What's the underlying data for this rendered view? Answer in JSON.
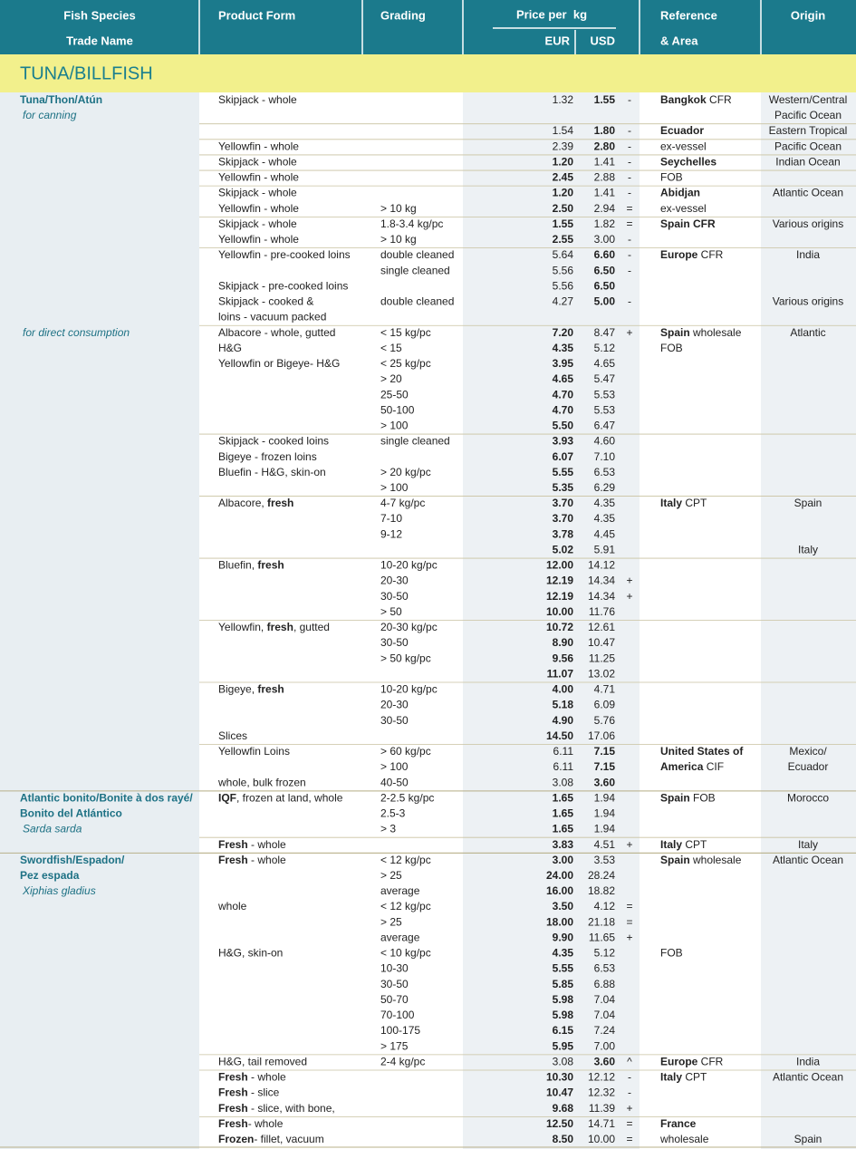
{
  "header": {
    "fish_species": "Fish Species",
    "trade_name": "Trade Name",
    "product_form": "Product Form",
    "grading": "Grading",
    "price_per_kg": "Price per  kg",
    "eur": "EUR",
    "usd": "USD",
    "reference": "Reference",
    "area": "& Area",
    "origin": "Origin"
  },
  "section": "TUNA/BILLFISH",
  "rows": [
    {
      "s": {
        "text": "Tuna/Thon/Atún",
        "bold": true
      },
      "f": "Skipjack - whole",
      "e": "1.32",
      "u": {
        "text": "1.55",
        "bold": true
      },
      "c": "-",
      "r": [
        {
          "text": "Bangkok",
          "bold": true
        },
        " CFR"
      ],
      "o": "Western/Central"
    },
    {
      "s": {
        "text": "for canning",
        "italic": true
      },
      "o": "Pacific Ocean"
    },
    {
      "e": "1.54",
      "u": {
        "text": "1.80",
        "bold": true
      },
      "c": "-",
      "r": {
        "text": "Ecuador",
        "bold": true
      },
      "o": "Eastern Tropical"
    },
    {
      "f": "Yellowfin - whole",
      "e": "2.39",
      "u": {
        "text": "2.80",
        "bold": true
      },
      "c": "-",
      "r": "ex-vessel",
      "o": "Pacific Ocean"
    },
    {
      "f": "Skipjack - whole",
      "e": {
        "text": "1.20",
        "bold": true
      },
      "u": "1.41",
      "c": "-",
      "r": {
        "text": "Seychelles",
        "bold": true
      },
      "o": "Indian Ocean"
    },
    {
      "f": "Yellowfin - whole",
      "e": {
        "text": "2.45",
        "bold": true
      },
      "u": "2.88",
      "c": "-",
      "r": "FOB"
    },
    {
      "f": "Skipjack - whole",
      "e": {
        "text": "1.20",
        "bold": true
      },
      "u": "1.41",
      "c": "-",
      "r": {
        "text": "Abidjan",
        "bold": true
      },
      "o": "Atlantic Ocean"
    },
    {
      "f": "Yellowfin - whole",
      "g": "> 10 kg",
      "e": {
        "text": "2.50",
        "bold": true
      },
      "u": "2.94",
      "c": "=",
      "r": "ex-vessel"
    },
    {
      "f": "Skipjack - whole",
      "g": "1.8-3.4 kg/pc",
      "e": {
        "text": "1.55",
        "bold": true
      },
      "u": "1.82",
      "c": "=",
      "r": {
        "text": "Spain CFR",
        "bold": true
      },
      "o": "Various origins"
    },
    {
      "f": "Yellowfin - whole",
      "g": "> 10 kg",
      "e": {
        "text": "2.55",
        "bold": true
      },
      "u": "3.00",
      "c": "-"
    },
    {
      "f": "Yellowfin - pre-cooked loins",
      "g": "double cleaned",
      "e": "5.64",
      "u": {
        "text": "6.60",
        "bold": true
      },
      "c": "-",
      "r": [
        {
          "text": "Europe",
          "bold": true
        },
        " CFR"
      ],
      "o": "India"
    },
    {
      "g": "single cleaned",
      "e": "5.56",
      "u": {
        "text": "6.50",
        "bold": true
      },
      "c": "-"
    },
    {
      "f": "Skipjack - pre-cooked loins",
      "e": "5.56",
      "u": {
        "text": "6.50",
        "bold": true
      }
    },
    {
      "f": "Skipjack - cooked &",
      "g": "double cleaned",
      "e": "4.27",
      "u": {
        "text": "5.00",
        "bold": true
      },
      "c": "-",
      "o": "Various origins"
    },
    {
      "f": "loins - vacuum packed"
    },
    {
      "s": {
        "text": "for direct consumption",
        "italic": true
      },
      "f": "Albacore - whole, gutted",
      "g": "< 15 kg/pc",
      "e": {
        "text": "7.20",
        "bold": true
      },
      "u": "8.47",
      "c": "+",
      "r": [
        {
          "text": "Spain",
          "bold": true
        },
        " wholesale"
      ],
      "o": "Atlantic"
    },
    {
      "f": "H&G",
      "g": "< 15",
      "e": {
        "text": "4.35",
        "bold": true
      },
      "u": "5.12",
      "r": "FOB"
    },
    {
      "f": "Yellowfin or Bigeye- H&G",
      "g": "< 25 kg/pc",
      "e": {
        "text": "3.95",
        "bold": true
      },
      "u": "4.65"
    },
    {
      "g": "> 20",
      "e": {
        "text": "4.65",
        "bold": true
      },
      "u": "5.47"
    },
    {
      "g": "25-50",
      "e": {
        "text": "4.70",
        "bold": true
      },
      "u": "5.53"
    },
    {
      "g": "50-100",
      "e": {
        "text": "4.70",
        "bold": true
      },
      "u": "5.53"
    },
    {
      "g": "> 100",
      "e": {
        "text": "5.50",
        "bold": true
      },
      "u": "6.47"
    },
    {
      "f": "Skipjack - cooked loins",
      "g": "single cleaned",
      "e": {
        "text": "3.93",
        "bold": true
      },
      "u": "4.60"
    },
    {
      "f": "Bigeye - frozen loins",
      "e": {
        "text": "6.07",
        "bold": true
      },
      "u": "7.10"
    },
    {
      "f": "Bluefin - H&G, skin-on",
      "g": "> 20 kg/pc",
      "e": {
        "text": "5.55",
        "bold": true
      },
      "u": "6.53"
    },
    {
      "g": "> 100",
      "e": {
        "text": "5.35",
        "bold": true
      },
      "u": "6.29"
    },
    {
      "f": [
        "Albacore, ",
        {
          "text": "fresh",
          "bold": true
        }
      ],
      "g": "4-7 kg/pc",
      "e": {
        "text": "3.70",
        "bold": true
      },
      "u": "4.35",
      "r": [
        {
          "text": "Italy",
          "bold": true
        },
        " CPT"
      ],
      "o": "Spain"
    },
    {
      "g": "7-10",
      "e": {
        "text": "3.70",
        "bold": true
      },
      "u": "4.35"
    },
    {
      "g": "9-12",
      "e": {
        "text": "3.78",
        "bold": true
      },
      "u": "4.45"
    },
    {
      "e": {
        "text": "5.02",
        "bold": true
      },
      "u": "5.91",
      "o": "Italy"
    },
    {
      "f": [
        "Bluefin, ",
        {
          "text": "fresh",
          "bold": true
        }
      ],
      "g": "10-20 kg/pc",
      "e": {
        "text": "12.00",
        "bold": true
      },
      "u": "14.12"
    },
    {
      "g": "20-30",
      "e": {
        "text": "12.19",
        "bold": true
      },
      "u": "14.34",
      "c": "+"
    },
    {
      "g": "30-50",
      "e": {
        "text": "12.19",
        "bold": true
      },
      "u": "14.34",
      "c": "+"
    },
    {
      "g": "> 50",
      "e": {
        "text": "10.00",
        "bold": true
      },
      "u": "11.76"
    },
    {
      "f": [
        "Yellowfin, ",
        {
          "text": "fresh",
          "bold": true
        },
        ", gutted"
      ],
      "g": "20-30 kg/pc",
      "e": {
        "text": "10.72",
        "bold": true
      },
      "u": "12.61"
    },
    {
      "g": "30-50",
      "e": {
        "text": "8.90",
        "bold": true
      },
      "u": "10.47"
    },
    {
      "g": "> 50 kg/pc",
      "e": {
        "text": "9.56",
        "bold": true
      },
      "u": "11.25"
    },
    {
      "e": {
        "text": "11.07",
        "bold": true
      },
      "u": "13.02"
    },
    {
      "f": [
        "Bigeye, ",
        {
          "text": "fresh",
          "bold": true
        }
      ],
      "g": "10-20 kg/pc",
      "e": {
        "text": "4.00",
        "bold": true
      },
      "u": "4.71"
    },
    {
      "g": "20-30",
      "e": {
        "text": "5.18",
        "bold": true
      },
      "u": "6.09"
    },
    {
      "g": "30-50",
      "e": {
        "text": "4.90",
        "bold": true
      },
      "u": "5.76"
    },
    {
      "f": "Slices",
      "e": {
        "text": "14.50",
        "bold": true
      },
      "u": "17.06"
    },
    {
      "f": "Yellowfin Loins",
      "g": "> 60 kg/pc",
      "e": "6.11",
      "u": {
        "text": "7.15",
        "bold": true
      },
      "r": {
        "text": "United States of",
        "bold": true
      },
      "o": "Mexico/"
    },
    {
      "g": "> 100",
      "e": "6.11",
      "u": {
        "text": "7.15",
        "bold": true
      },
      "r": [
        {
          "text": "America",
          "bold": true
        },
        " CIF"
      ],
      "o": "Ecuador"
    },
    {
      "f": "whole, bulk frozen",
      "g": "40-50",
      "e": "3.08",
      "u": {
        "text": "3.60",
        "bold": true
      }
    },
    {
      "s": {
        "text": "Atlantic bonito/Bonite à dos rayé/",
        "bold": true
      },
      "f": [
        {
          "text": "IQF",
          "bold": true
        },
        ", frozen at land, whole"
      ],
      "g": "2-2.5 kg/pc",
      "e": {
        "text": "1.65",
        "bold": true
      },
      "u": "1.94",
      "r": [
        {
          "text": "Spain",
          "bold": true
        },
        " FOB"
      ],
      "o": "Morocco"
    },
    {
      "s": {
        "text": "Bonito del Atlántico",
        "bold": true
      },
      "g": "2.5-3",
      "e": {
        "text": "1.65",
        "bold": true
      },
      "u": "1.94"
    },
    {
      "s": {
        "text": "Sarda sarda",
        "italic": true
      },
      "g": "> 3",
      "e": {
        "text": "1.65",
        "bold": true
      },
      "u": "1.94"
    },
    {
      "f": [
        {
          "text": "Fresh",
          "bold": true
        },
        " - whole"
      ],
      "e": {
        "text": "3.83",
        "bold": true
      },
      "u": "4.51",
      "c": "+",
      "r": [
        {
          "text": "Italy",
          "bold": true
        },
        " CPT"
      ],
      "o": "Italy"
    },
    {
      "s": {
        "text": "Swordfish/Espadon/",
        "bold": true
      },
      "f": [
        {
          "text": "Fresh",
          "bold": true
        },
        " - whole"
      ],
      "g": "< 12 kg/pc",
      "e": {
        "text": "3.00",
        "bold": true
      },
      "u": "3.53",
      "r": [
        {
          "text": "Spain",
          "bold": true
        },
        " wholesale"
      ],
      "o": "Atlantic Ocean"
    },
    {
      "s": {
        "text": "Pez espada",
        "bold": true
      },
      "g": "> 25",
      "e": {
        "text": "24.00",
        "bold": true
      },
      "u": "28.24"
    },
    {
      "s": {
        "text": "Xiphias gladius",
        "italic": true
      },
      "g": "average",
      "e": {
        "text": "16.00",
        "bold": true
      },
      "u": "18.82"
    },
    {
      "f": "whole",
      "g": "< 12 kg/pc",
      "e": {
        "text": "3.50",
        "bold": true
      },
      "u": "4.12",
      "c": "="
    },
    {
      "g": "> 25",
      "e": {
        "text": "18.00",
        "bold": true
      },
      "u": "21.18",
      "c": "="
    },
    {
      "g": "average",
      "e": {
        "text": "9.90",
        "bold": true
      },
      "u": "11.65",
      "c": "+"
    },
    {
      "f": "H&G, skin-on",
      "g": "< 10 kg/pc",
      "e": {
        "text": "4.35",
        "bold": true
      },
      "u": "5.12",
      "r": "FOB"
    },
    {
      "g": "10-30",
      "e": {
        "text": "5.55",
        "bold": true
      },
      "u": "6.53"
    },
    {
      "g": "30-50",
      "e": {
        "text": "5.85",
        "bold": true
      },
      "u": "6.88"
    },
    {
      "g": "50-70",
      "e": {
        "text": "5.98",
        "bold": true
      },
      "u": "7.04"
    },
    {
      "g": "70-100",
      "e": {
        "text": "5.98",
        "bold": true
      },
      "u": "7.04"
    },
    {
      "g": "100-175",
      "e": {
        "text": "6.15",
        "bold": true
      },
      "u": "7.24"
    },
    {
      "g": "> 175",
      "e": {
        "text": "5.95",
        "bold": true
      },
      "u": "7.00"
    },
    {
      "f": "H&G, tail removed",
      "g": "2-4 kg/pc",
      "e": "3.08",
      "u": {
        "text": "3.60",
        "bold": true
      },
      "c": "^",
      "r": [
        {
          "text": "Europe",
          "bold": true
        },
        " CFR"
      ],
      "o": "India"
    },
    {
      "f": [
        {
          "text": "Fresh",
          "bold": true
        },
        " - whole"
      ],
      "e": {
        "text": "10.30",
        "bold": true
      },
      "u": "12.12",
      "c": "-",
      "r": [
        {
          "text": "Italy",
          "bold": true
        },
        " CPT"
      ],
      "o": "Atlantic Ocean"
    },
    {
      "f": [
        {
          "text": "Fresh",
          "bold": true
        },
        " - slice"
      ],
      "e": {
        "text": "10.47",
        "bold": true
      },
      "u": "12.32",
      "c": "-"
    },
    {
      "f": [
        {
          "text": "Fresh",
          "bold": true
        },
        " - slice, with bone,"
      ],
      "e": {
        "text": "9.68",
        "bold": true
      },
      "u": "11.39",
      "c": "+"
    },
    {
      "f": [
        {
          "text": "Fresh",
          "bold": true
        },
        "- whole"
      ],
      "e": {
        "text": "12.50",
        "bold": true
      },
      "u": "14.71",
      "c": "=",
      "r": {
        "text": "France",
        "bold": true
      }
    },
    {
      "f": [
        {
          "text": "Frozen",
          "bold": true
        },
        "- fillet, vacuum"
      ],
      "e": {
        "text": "8.50",
        "bold": true
      },
      "u": "10.00",
      "c": "=",
      "r": "wholesale",
      "o": "Spain"
    }
  ]
}
